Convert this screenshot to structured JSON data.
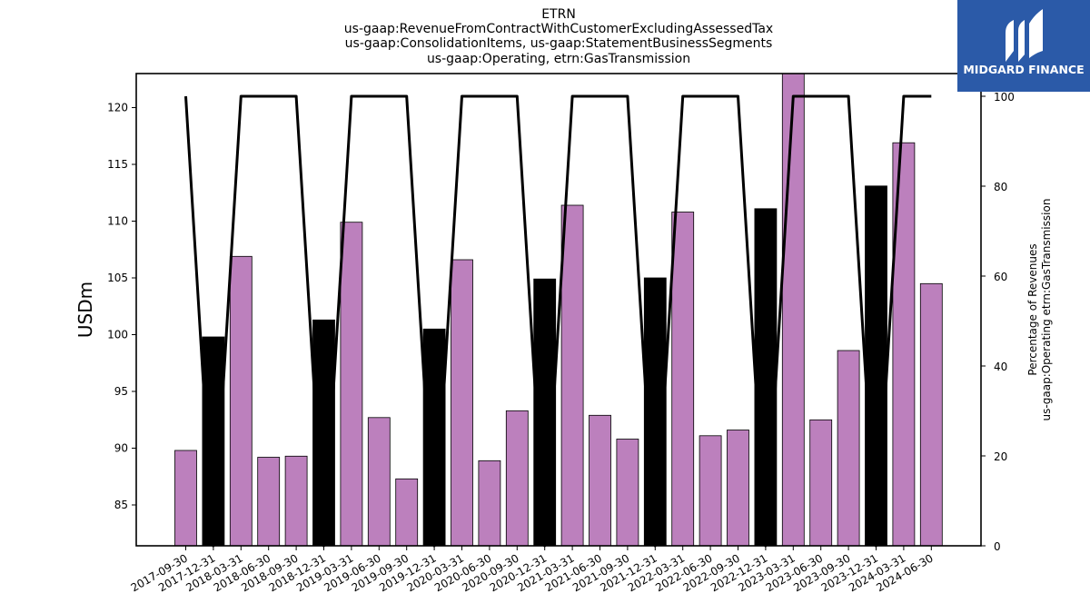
{
  "chart_data": {
    "type": "bar",
    "title_lines": [
      "ETRN",
      "us-gaap:RevenueFromContractWithCustomerExcludingAssessedTax",
      "us-gaap:ConsolidationItems, us-gaap:StatementBusinessSegments",
      "us-gaap:Operating, etrn:GasTransmission"
    ],
    "ylabel": "USDm",
    "y2label_lines": [
      "Percentage of Revenues",
      "us-gaap:Operating etrn:GasTransmission"
    ],
    "ylim": [
      81.4,
      123.0
    ],
    "yticks": [
      85,
      90,
      95,
      100,
      105,
      110,
      115,
      120
    ],
    "y2lim": [
      0,
      100.0
    ],
    "y2ticks": [
      0,
      20,
      40,
      60,
      80,
      100
    ],
    "categories": [
      "2017-09-30",
      "2017-12-31",
      "2018-03-31",
      "2018-06-30",
      "2018-09-30",
      "2018-12-31",
      "2019-03-31",
      "2019-06-30",
      "2019-09-30",
      "2019-12-31",
      "2020-03-31",
      "2020-06-30",
      "2020-09-30",
      "2020-12-31",
      "2021-03-31",
      "2021-06-30",
      "2021-09-30",
      "2021-12-31",
      "2022-03-31",
      "2022-06-30",
      "2022-09-30",
      "2022-12-31",
      "2023-03-31",
      "2023-06-30",
      "2023-09-30",
      "2023-12-31",
      "2024-03-31",
      "2024-06-30"
    ],
    "series": [
      {
        "type": "bar",
        "values": [
          89.8,
          99.8,
          106.9,
          89.2,
          89.3,
          101.3,
          109.9,
          92.7,
          87.3,
          100.5,
          106.6,
          88.9,
          93.3,
          104.9,
          111.4,
          92.9,
          90.8,
          105.0,
          110.8,
          91.1,
          91.6,
          111.1,
          123.0,
          92.5,
          98.6,
          113.1,
          116.9,
          104.5
        ],
        "colors": [
          "#bc80bd",
          "#000000",
          "#bc80bd",
          "#bc80bd",
          "#bc80bd",
          "#000000",
          "#bc80bd",
          "#bc80bd",
          "#bc80bd",
          "#000000",
          "#bc80bd",
          "#bc80bd",
          "#bc80bd",
          "#000000",
          "#bc80bd",
          "#bc80bd",
          "#bc80bd",
          "#000000",
          "#bc80bd",
          "#bc80bd",
          "#bc80bd",
          "#000000",
          "#bc80bd",
          "#bc80bd",
          "#bc80bd",
          "#000000",
          "#bc80bd",
          "#bc80bd"
        ]
      },
      {
        "type": "line",
        "axis": "right",
        "color": "#000000",
        "values": [
          100,
          0,
          100,
          100,
          100,
          0,
          100,
          100,
          100,
          0,
          100,
          100,
          100,
          0,
          100,
          100,
          100,
          0,
          100,
          100,
          100,
          0,
          100,
          100,
          100,
          0,
          100,
          100
        ]
      }
    ],
    "grid": false
  },
  "logo": {
    "text": "MIDGARD FINANCE",
    "background": "#2b5aa8"
  }
}
